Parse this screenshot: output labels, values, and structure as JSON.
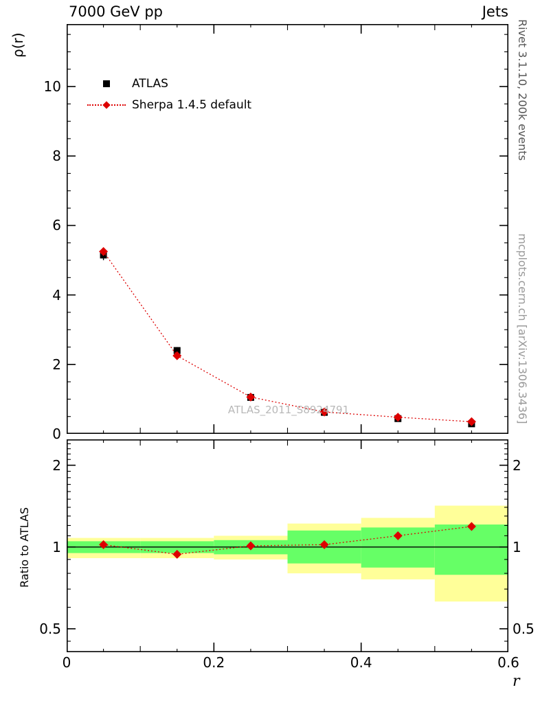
{
  "header": {
    "title_left": "7000 GeV pp",
    "title_right": "Jets"
  },
  "side_texts": {
    "rivet": "Rivet 3.1.10,  200k events",
    "mcplots": "mcplots.cern.ch [arXiv:1306.3436]"
  },
  "watermark": "ATLAS_2011_S8924791",
  "legend": {
    "atlas_label": "ATLAS",
    "sherpa_label": "Sherpa 1.4.5 default"
  },
  "axes": {
    "x_label": "r",
    "y_label_main": "ρ(r)",
    "y_label_ratio": "Ratio to ATLAS"
  },
  "colors": {
    "atlas": "#000000",
    "sherpa": "#dd0000",
    "band_yellow": "#ffff99",
    "band_green": "#66ff66"
  },
  "chart_data": [
    {
      "type": "scatter",
      "panel": "main",
      "title": "7000 GeV pp — Jets",
      "xlabel": "r",
      "ylabel": "ρ(r)",
      "xlim": [
        0,
        0.6
      ],
      "ylim": [
        0,
        11.8
      ],
      "x_major_ticks": [
        0,
        0.2,
        0.4,
        0.6
      ],
      "x_minor_step": 0.05,
      "y_major_ticks": [
        0,
        2,
        4,
        6,
        8,
        10
      ],
      "y_minor_step": 0.5,
      "x": [
        0.05,
        0.15,
        0.25,
        0.35,
        0.45,
        0.55
      ],
      "series": [
        {
          "name": "ATLAS",
          "marker": "square",
          "color": "#000000",
          "line": "none",
          "values": [
            5.15,
            2.4,
            1.05,
            0.62,
            0.44,
            0.29
          ],
          "yerr": [
            0.15,
            0.1,
            0.06,
            0.05,
            0.04,
            0.04
          ]
        },
        {
          "name": "Sherpa 1.4.5 default",
          "marker": "diamond",
          "color": "#dd0000",
          "line": "dotted",
          "values": [
            5.25,
            2.25,
            1.06,
            0.63,
            0.48,
            0.35
          ]
        }
      ],
      "grid": false,
      "legend_position": "top-left"
    },
    {
      "type": "ratio",
      "panel": "ratio",
      "ylabel": "Ratio to ATLAS",
      "yscale": "log",
      "xlim": [
        0,
        0.6
      ],
      "ylim": [
        0.41,
        2.49
      ],
      "y_major_ticks": [
        0.5,
        1,
        2
      ],
      "y_minor_ticks": [
        0.45,
        0.6,
        0.7,
        0.8,
        0.9,
        1.1,
        1.2,
        1.3,
        1.4,
        1.5,
        1.6,
        1.7,
        1.8,
        1.9,
        2.1,
        2.2,
        2.3,
        2.4
      ],
      "x_major_ticks": [
        0,
        0.2,
        0.4,
        0.6
      ],
      "x_minor_step": 0.05,
      "reference_line": 1,
      "x": [
        0.05,
        0.15,
        0.25,
        0.35,
        0.45,
        0.55
      ],
      "bin_edges": [
        0,
        0.1,
        0.2,
        0.3,
        0.4,
        0.5,
        0.6
      ],
      "bands": {
        "yellow": {
          "color": "#ffff99",
          "lo": [
            0.91,
            0.91,
            0.9,
            0.8,
            0.76,
            0.63
          ],
          "hi": [
            1.08,
            1.08,
            1.1,
            1.22,
            1.28,
            1.42
          ]
        },
        "green": {
          "color": "#66ff66",
          "lo": [
            0.95,
            0.95,
            0.94,
            0.87,
            0.84,
            0.79
          ],
          "hi": [
            1.05,
            1.05,
            1.06,
            1.15,
            1.18,
            1.21
          ]
        }
      },
      "series": [
        {
          "name": "Sherpa 1.4.5 default",
          "marker": "diamond",
          "color": "#dd0000",
          "line": "dotted",
          "values": [
            1.02,
            0.94,
            1.01,
            1.02,
            1.1,
            1.19
          ],
          "yerr": [
            0.02,
            0.02,
            0.02,
            0.02,
            0.03,
            0.04
          ]
        }
      ]
    }
  ]
}
